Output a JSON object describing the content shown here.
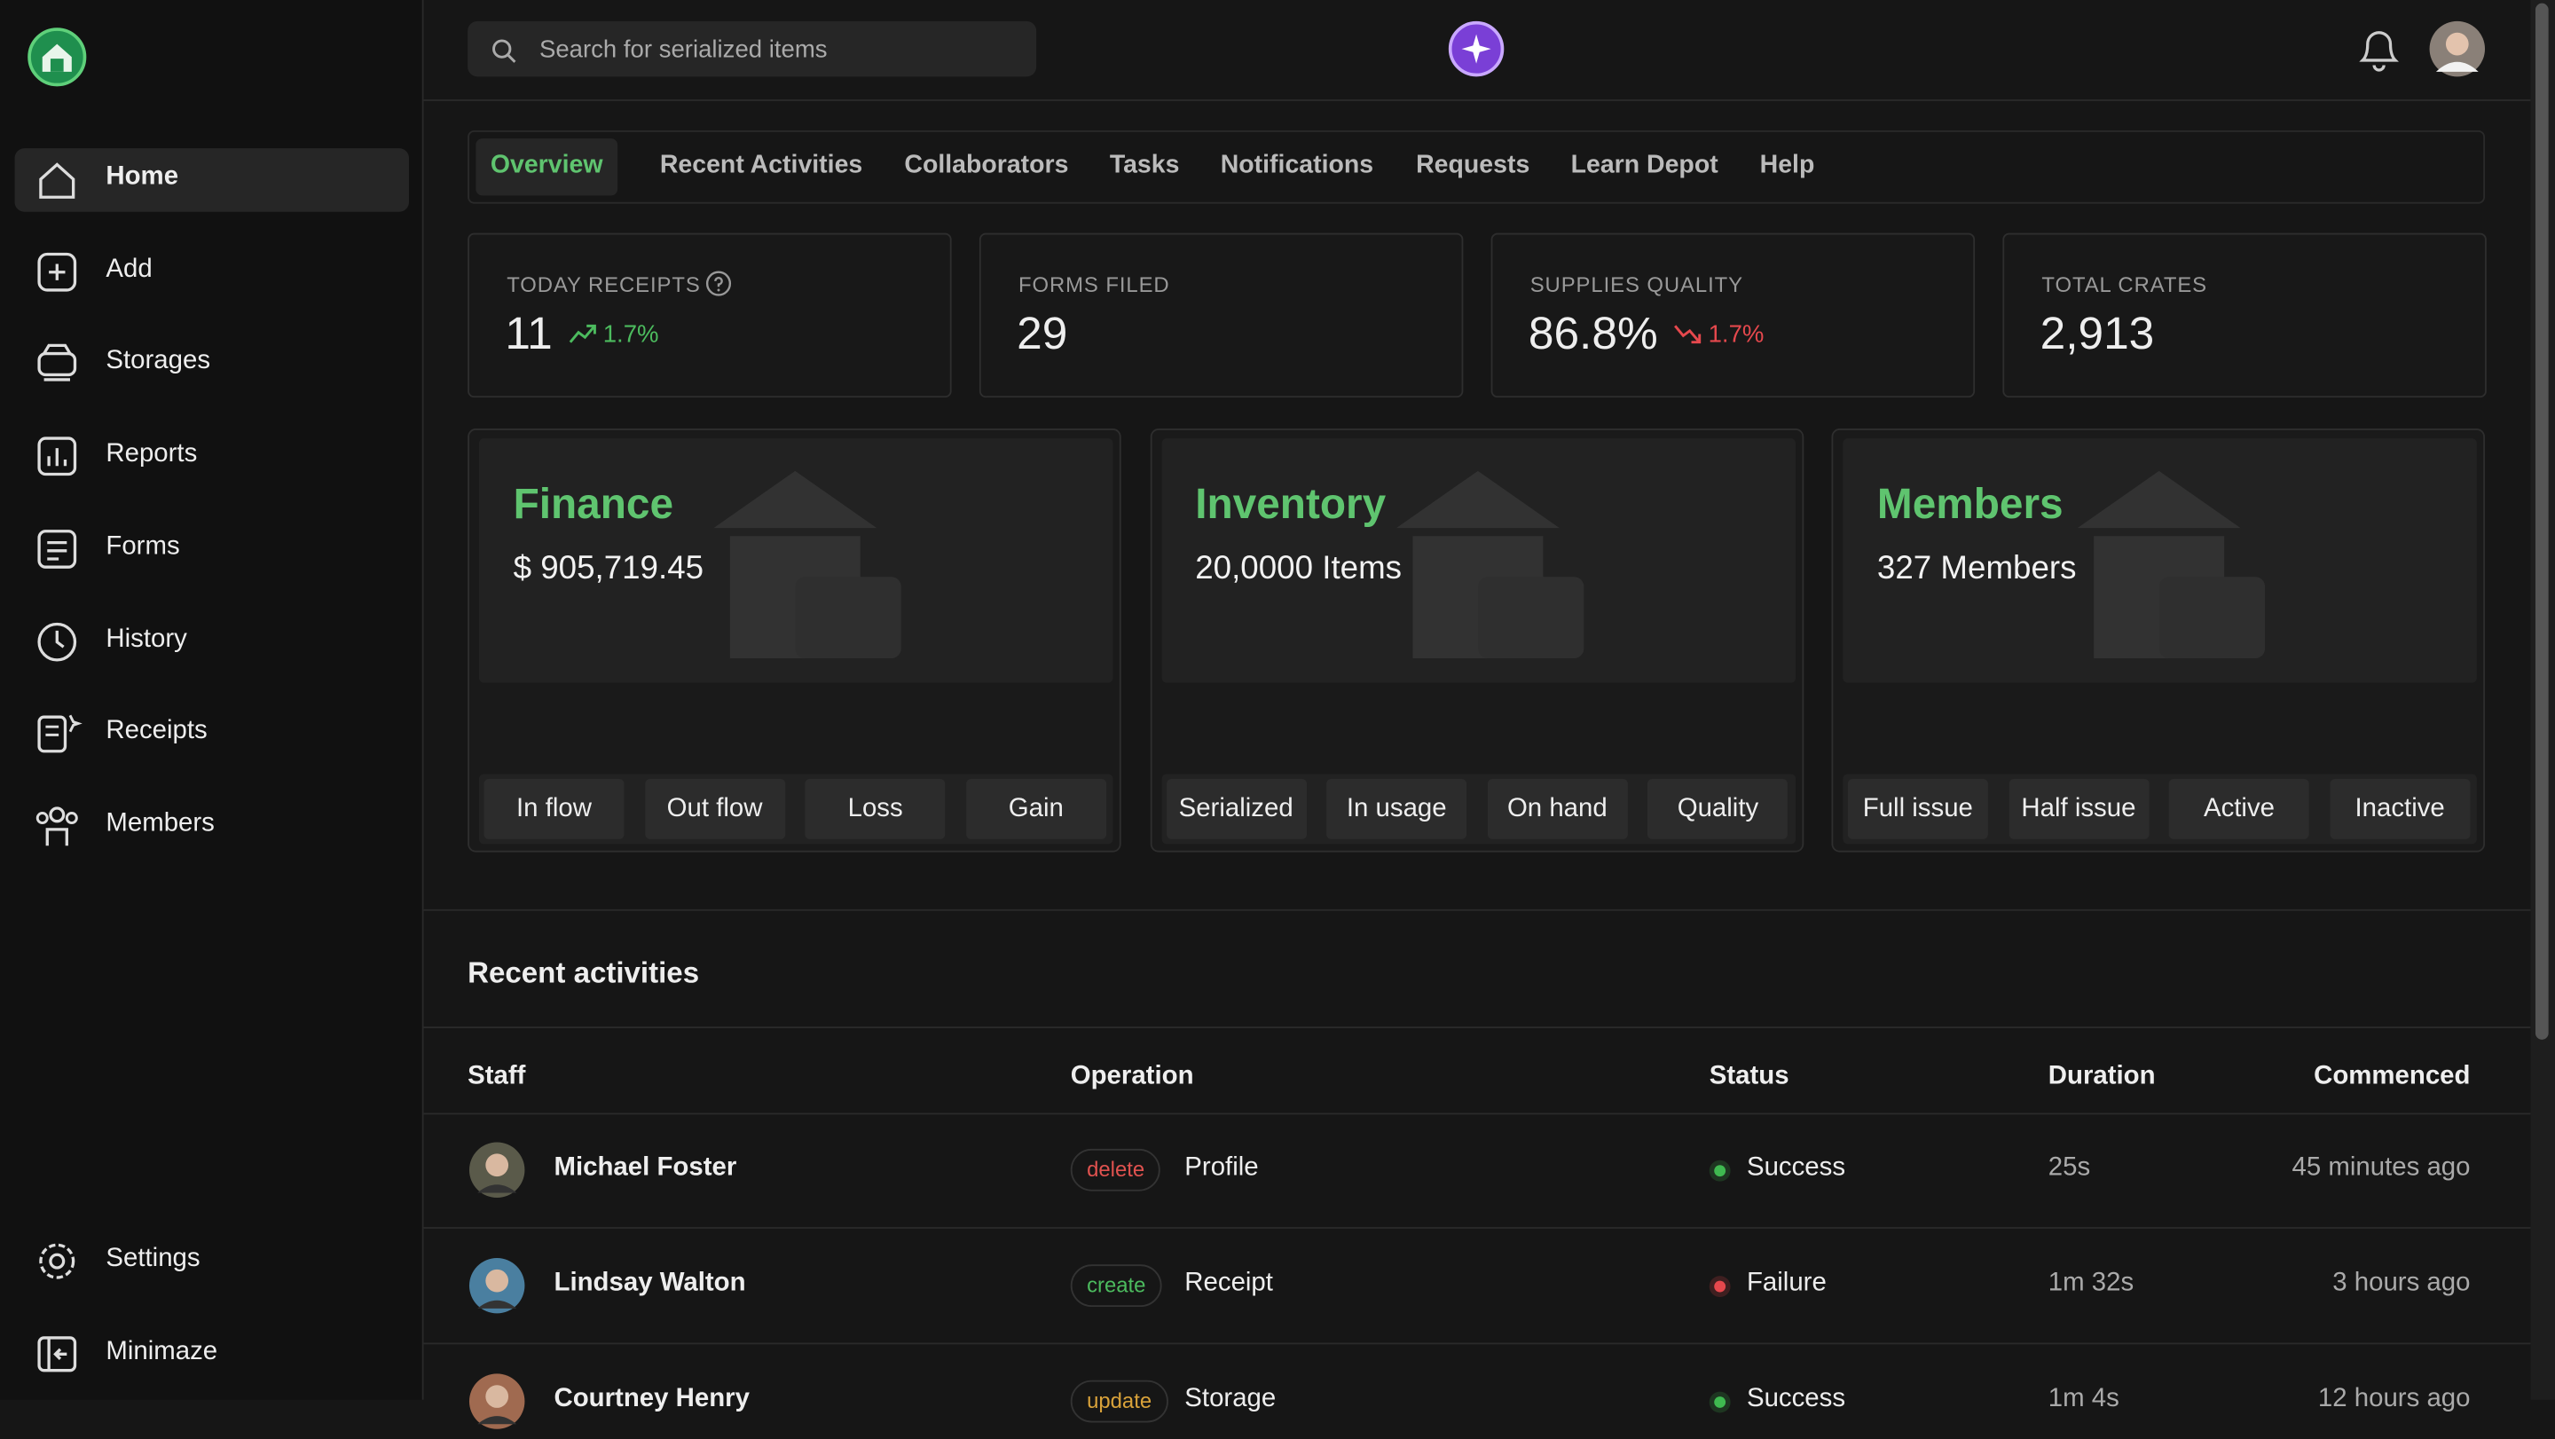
{
  "sidebar": {
    "nav": [
      "Home",
      "Add",
      "Storages",
      "Reports",
      "Forms",
      "History",
      "Receipts",
      "Members"
    ],
    "active": 0,
    "bottom": [
      "Settings",
      "Minimaze"
    ]
  },
  "topbar": {
    "search_placeholder": "Search for serialized items"
  },
  "tabs": {
    "items": [
      "Overview",
      "Recent Activities",
      "Collaborators",
      "Tasks",
      "Notifications",
      "Requests",
      "Learn Depot",
      "Help"
    ],
    "active": 0
  },
  "stats": [
    {
      "label": "TODAY RECEIPTS",
      "value": "11",
      "trend": {
        "direction": "up",
        "text": "1.7%"
      }
    },
    {
      "label": "FORMS FILED",
      "value": "29"
    },
    {
      "label": "SUPPLIES QUALITY",
      "value": "86.8%",
      "trend": {
        "direction": "down",
        "text": "1.7%"
      }
    },
    {
      "label": "TOTAL CRATES",
      "value": "2,913"
    }
  ],
  "cards": [
    {
      "title": "Finance",
      "subtitle": "$ 905,719.45",
      "buttons": [
        "In flow",
        "Out flow",
        "Loss",
        "Gain"
      ]
    },
    {
      "title": "Inventory",
      "subtitle": "20,0000 Items",
      "buttons": [
        "Serialized",
        "In usage",
        "On hand",
        "Quality"
      ]
    },
    {
      "title": "Members",
      "subtitle": "327 Members",
      "buttons": [
        "Full issue",
        "Half issue",
        "Active",
        "Inactive"
      ]
    }
  ],
  "activities": {
    "title": "Recent activities",
    "columns": [
      "Staff",
      "Operation",
      "Status",
      "Duration",
      "Commenced"
    ],
    "rows": [
      {
        "staff": "Michael Foster",
        "operation": "delete",
        "operation_color": "#e0524f",
        "item": "Profile",
        "status": "Success",
        "status_color": "#3fb950",
        "duration": "25s",
        "commenced": "45 minutes ago"
      },
      {
        "staff": "Lindsay Walton",
        "operation": "create",
        "operation_color": "#4cbb5e",
        "item": "Receipt",
        "status": "Failure",
        "status_color": "#e5484d",
        "duration": "1m 32s",
        "commenced": "3 hours ago"
      },
      {
        "staff": "Courtney Henry",
        "operation": "update",
        "operation_color": "#d9a23a",
        "item": "Storage",
        "status": "Success",
        "status_color": "#3fb950",
        "duration": "1m 4s",
        "commenced": "12 hours ago"
      }
    ]
  }
}
